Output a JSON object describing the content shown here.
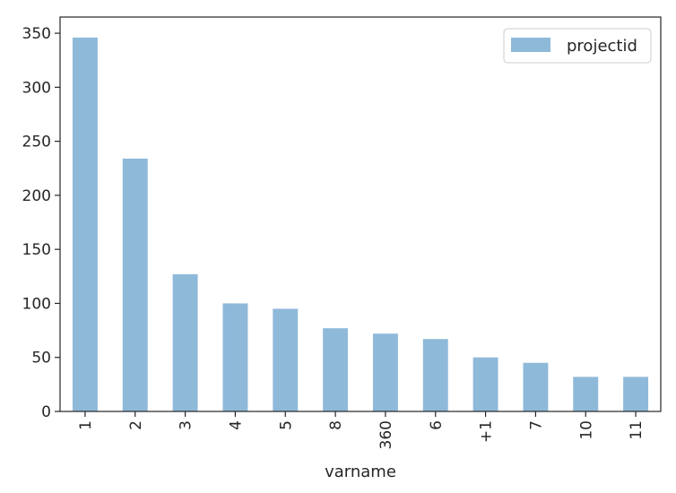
{
  "chart_data": {
    "type": "bar",
    "title": "",
    "xlabel": "varname",
    "ylabel": "",
    "categories": [
      "1",
      "2",
      "3",
      "4",
      "5",
      "8",
      "360",
      "6",
      "+1",
      "7",
      "10",
      "11"
    ],
    "series": [
      {
        "name": "projectid",
        "values": [
          346,
          234,
          127,
          100,
          95,
          77,
          72,
          67,
          50,
          45,
          32,
          32
        ],
        "color": "#8fb9d9"
      }
    ],
    "ylim": [
      0,
      365
    ],
    "yticks": [
      0,
      50,
      100,
      150,
      200,
      250,
      300,
      350
    ],
    "grid": false,
    "legend": "top-right",
    "x_tick_rotation": -90
  }
}
